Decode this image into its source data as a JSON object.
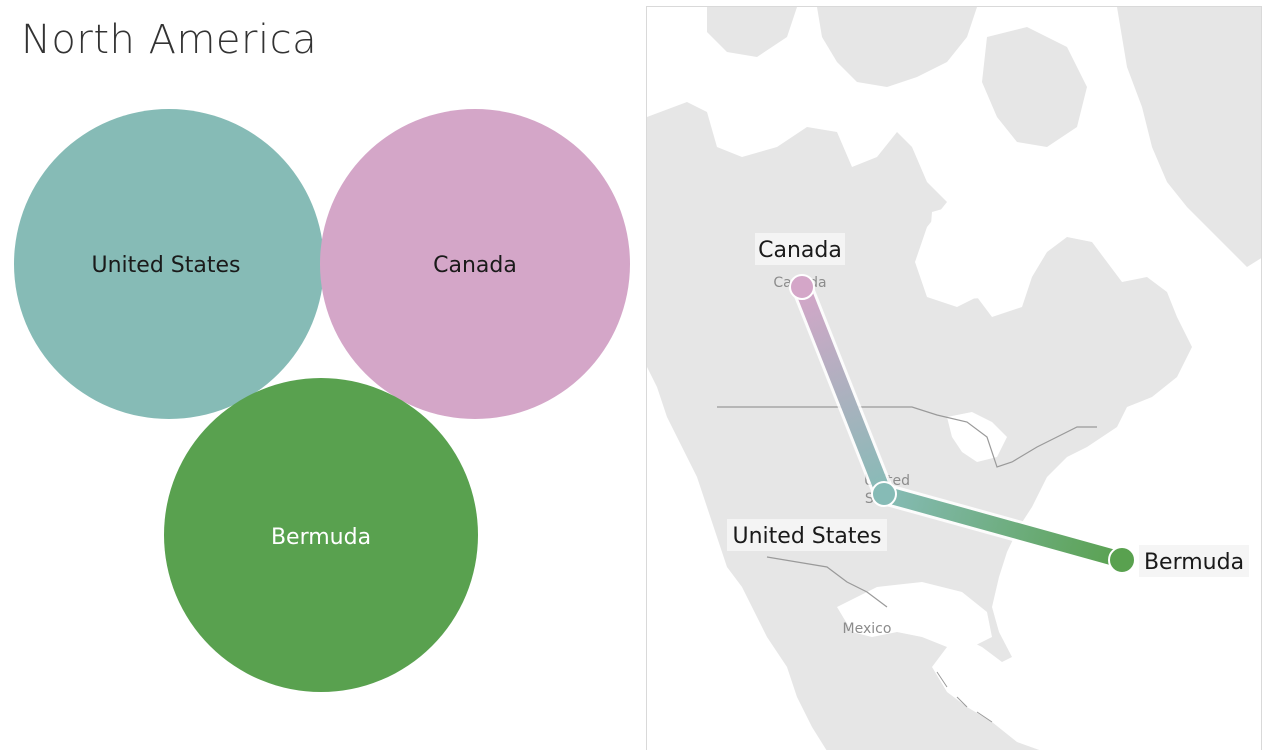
{
  "title": "North America",
  "colors": {
    "united_states": "#86bbb6",
    "canada": "#d4a6c8",
    "bermuda": "#59a14f",
    "water": "#ffffff",
    "land": "#e6e6e6",
    "border": "#9a9a9a"
  },
  "bubbles": [
    {
      "id": "united_states",
      "label": "United States",
      "color": "#86bbb6",
      "label_color": "#1a1a1a"
    },
    {
      "id": "canada",
      "label": "Canada",
      "color": "#d4a6c8",
      "label_color": "#1a1a1a"
    },
    {
      "id": "bermuda",
      "label": "Bermuda",
      "color": "#59a14f",
      "label_color": "#ffffff"
    }
  ],
  "map": {
    "base_labels": {
      "canada": "Canada",
      "united_states_line1": "United",
      "united_states_line2": "States",
      "mexico": "Mexico"
    },
    "points": [
      {
        "id": "canada",
        "label": "Canada",
        "color": "#d4a6c8"
      },
      {
        "id": "united_states",
        "label": "United States",
        "color": "#86bbb6"
      },
      {
        "id": "bermuda",
        "label": "Bermuda",
        "color": "#59a14f"
      }
    ],
    "path_order": [
      "Canada",
      "United States",
      "Bermuda"
    ]
  }
}
